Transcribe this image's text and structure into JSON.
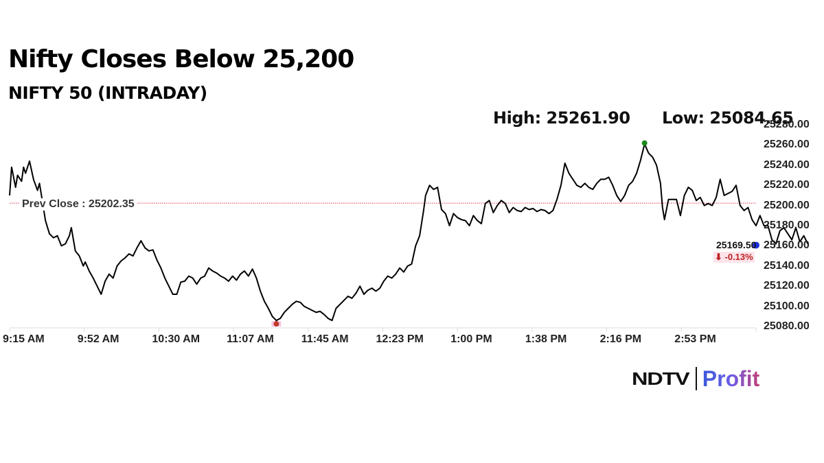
{
  "header": {
    "title": "Nifty Closes Below 25,200",
    "subtitle": "NIFTY 50 (INTRADAY)",
    "high_label": "High: 25261.90",
    "low_label": "Low: 25084.65"
  },
  "annotations": {
    "prev_close_label": "Prev Close : 25202.35",
    "last_value": "25169.50",
    "last_change": "⬇ -0.13%"
  },
  "branding": {
    "ndtv": "NDTV",
    "profit": "Profit"
  },
  "colors": {
    "line": "#000000",
    "prev_close_line": "#e0334a",
    "high_marker": "#1a8a1a",
    "low_marker": "#c0392b",
    "last_marker": "#1a2ee0",
    "change_negative": "#b22222"
  },
  "chart_data": {
    "type": "line",
    "title": "NIFTY 50 (INTRADAY)",
    "xlabel": "",
    "ylabel": "",
    "x_tick_labels": [
      "9:15 AM",
      "9:52 AM",
      "10:30 AM",
      "11:07 AM",
      "11:45 AM",
      "12:23 PM",
      "1:00 PM",
      "1:38 PM",
      "2:16 PM",
      "2:53 PM"
    ],
    "y_tick_labels": [
      "25280.00",
      "25260.00",
      "25240.00",
      "25220.00",
      "25200.00",
      "25180.00",
      "25160.00",
      "25140.00",
      "25120.00",
      "25100.00",
      "25080.00"
    ],
    "ylim": [
      25080,
      25280
    ],
    "x_range_minutes_from_open": [
      0,
      375
    ],
    "grid": false,
    "legend": null,
    "prev_close": 25202.35,
    "high": 25261.9,
    "low": 25084.65,
    "last": 25169.5,
    "change_pct": -0.13,
    "series": [
      {
        "name": "NIFTY 50",
        "points_minute_value": [
          [
            0,
            25210
          ],
          [
            1,
            25238
          ],
          [
            3,
            25218
          ],
          [
            4,
            25230
          ],
          [
            6,
            25224
          ],
          [
            7,
            25238
          ],
          [
            8,
            25232
          ],
          [
            10,
            25244
          ],
          [
            12,
            25226
          ],
          [
            14,
            25215
          ],
          [
            15,
            25222
          ],
          [
            16,
            25210
          ],
          [
            18,
            25185
          ],
          [
            20,
            25172
          ],
          [
            22,
            25168
          ],
          [
            24,
            25170
          ],
          [
            26,
            25160
          ],
          [
            28,
            25162
          ],
          [
            30,
            25170
          ],
          [
            31,
            25178
          ],
          [
            33,
            25155
          ],
          [
            35,
            25150
          ],
          [
            37,
            25140
          ],
          [
            38,
            25144
          ],
          [
            40,
            25135
          ],
          [
            42,
            25128
          ],
          [
            44,
            25120
          ],
          [
            46,
            25112
          ],
          [
            48,
            25125
          ],
          [
            50,
            25132
          ],
          [
            52,
            25128
          ],
          [
            54,
            25140
          ],
          [
            56,
            25145
          ],
          [
            58,
            25148
          ],
          [
            60,
            25152
          ],
          [
            62,
            25150
          ],
          [
            64,
            25158
          ],
          [
            66,
            25165
          ],
          [
            68,
            25158
          ],
          [
            70,
            25155
          ],
          [
            72,
            25156
          ],
          [
            74,
            25146
          ],
          [
            76,
            25138
          ],
          [
            78,
            25128
          ],
          [
            80,
            25120
          ],
          [
            82,
            25112
          ],
          [
            84,
            25112
          ],
          [
            86,
            25124
          ],
          [
            88,
            25125
          ],
          [
            90,
            25130
          ],
          [
            92,
            25128
          ],
          [
            94,
            25122
          ],
          [
            96,
            25128
          ],
          [
            98,
            25130
          ],
          [
            100,
            25138
          ],
          [
            102,
            25135
          ],
          [
            104,
            25133
          ],
          [
            106,
            25130
          ],
          [
            108,
            25128
          ],
          [
            110,
            25125
          ],
          [
            112,
            25130
          ],
          [
            114,
            25126
          ],
          [
            116,
            25132
          ],
          [
            118,
            25135
          ],
          [
            120,
            25130
          ],
          [
            122,
            25137
          ],
          [
            124,
            25128
          ],
          [
            126,
            25115
          ],
          [
            128,
            25105
          ],
          [
            130,
            25098
          ],
          [
            132,
            25090
          ],
          [
            134,
            25086
          ],
          [
            136,
            25088
          ],
          [
            138,
            25094
          ],
          [
            140,
            25098
          ],
          [
            142,
            25102
          ],
          [
            144,
            25105
          ],
          [
            146,
            25104
          ],
          [
            148,
            25100
          ],
          [
            150,
            25098
          ],
          [
            152,
            25096
          ],
          [
            154,
            25094
          ],
          [
            156,
            25095
          ],
          [
            158,
            25092
          ],
          [
            160,
            25088
          ],
          [
            162,
            25086
          ],
          [
            164,
            25098
          ],
          [
            166,
            25102
          ],
          [
            168,
            25106
          ],
          [
            170,
            25110
          ],
          [
            172,
            25108
          ],
          [
            174,
            25113
          ],
          [
            176,
            25120
          ],
          [
            178,
            25112
          ],
          [
            180,
            25116
          ],
          [
            182,
            25118
          ],
          [
            184,
            25115
          ],
          [
            186,
            25118
          ],
          [
            188,
            25125
          ],
          [
            190,
            25130
          ],
          [
            192,
            25128
          ],
          [
            194,
            25132
          ],
          [
            196,
            25138
          ],
          [
            198,
            25134
          ],
          [
            200,
            25140
          ],
          [
            202,
            25142
          ],
          [
            204,
            25160
          ],
          [
            206,
            25170
          ],
          [
            208,
            25195
          ],
          [
            209,
            25210
          ],
          [
            211,
            25220
          ],
          [
            213,
            25216
          ],
          [
            215,
            25218
          ],
          [
            217,
            25196
          ],
          [
            219,
            25192
          ],
          [
            221,
            25180
          ],
          [
            223,
            25192
          ],
          [
            225,
            25188
          ],
          [
            227,
            25186
          ],
          [
            229,
            25185
          ],
          [
            231,
            25180
          ],
          [
            233,
            25190
          ],
          [
            235,
            25185
          ],
          [
            237,
            25182
          ],
          [
            239,
            25202
          ],
          [
            241,
            25205
          ],
          [
            243,
            25193
          ],
          [
            245,
            25200
          ],
          [
            247,
            25205
          ],
          [
            249,
            25202
          ],
          [
            251,
            25193
          ],
          [
            253,
            25198
          ],
          [
            255,
            25195
          ],
          [
            257,
            25194
          ],
          [
            259,
            25198
          ],
          [
            261,
            25196
          ],
          [
            263,
            25197
          ],
          [
            265,
            25194
          ],
          [
            267,
            25196
          ],
          [
            269,
            25195
          ],
          [
            271,
            25192
          ],
          [
            273,
            25195
          ],
          [
            275,
            25206
          ],
          [
            277,
            25220
          ],
          [
            279,
            25242
          ],
          [
            281,
            25232
          ],
          [
            283,
            25226
          ],
          [
            285,
            25220
          ],
          [
            287,
            25218
          ],
          [
            289,
            25222
          ],
          [
            291,
            25218
          ],
          [
            293,
            25216
          ],
          [
            295,
            25222
          ],
          [
            297,
            25226
          ],
          [
            299,
            25226
          ],
          [
            301,
            25228
          ],
          [
            303,
            25220
          ],
          [
            305,
            25210
          ],
          [
            307,
            25204
          ],
          [
            309,
            25210
          ],
          [
            311,
            25220
          ],
          [
            313,
            25224
          ],
          [
            315,
            25232
          ],
          [
            317,
            25245
          ],
          [
            319,
            25261
          ],
          [
            321,
            25252
          ],
          [
            323,
            25248
          ],
          [
            325,
            25240
          ],
          [
            327,
            25222
          ],
          [
            328,
            25198
          ],
          [
            329,
            25186
          ],
          [
            331,
            25206
          ],
          [
            333,
            25206
          ],
          [
            335,
            25206
          ],
          [
            337,
            25190
          ],
          [
            339,
            25210
          ],
          [
            341,
            25218
          ],
          [
            343,
            25215
          ],
          [
            345,
            25205
          ],
          [
            347,
            25208
          ],
          [
            349,
            25200
          ],
          [
            351,
            25202
          ],
          [
            353,
            25200
          ],
          [
            355,
            25208
          ],
          [
            357,
            25226
          ],
          [
            359,
            25210
          ],
          [
            361,
            25212
          ],
          [
            363,
            25214
          ],
          [
            365,
            25220
          ],
          [
            367,
            25200
          ],
          [
            369,
            25195
          ],
          [
            371,
            25198
          ],
          [
            373,
            25186
          ],
          [
            375,
            25180
          ],
          [
            377,
            25190
          ],
          [
            379,
            25180
          ],
          [
            381,
            25180
          ],
          [
            383,
            25166
          ],
          [
            385,
            25162
          ],
          [
            387,
            25175
          ],
          [
            389,
            25178
          ],
          [
            391,
            25172
          ],
          [
            393,
            25166
          ],
          [
            395,
            25178
          ],
          [
            397,
            25164
          ],
          [
            399,
            25170
          ],
          [
            401,
            25162
          ]
        ]
      }
    ]
  }
}
